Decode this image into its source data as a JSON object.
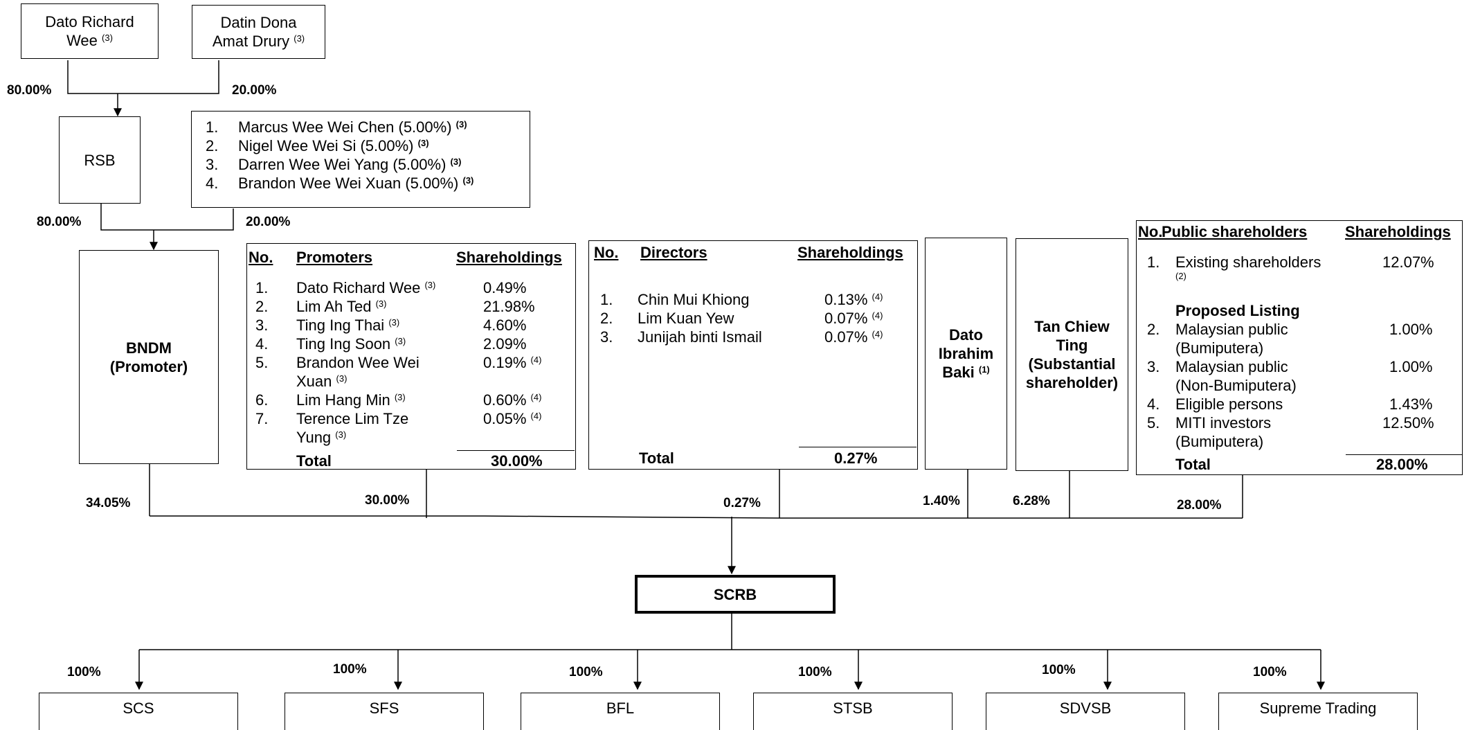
{
  "owners": {
    "richard": {
      "name": "Dato Richard Wee",
      "line1": "Dato Richard",
      "line2": "Wee",
      "sup": "(3)"
    },
    "dona": {
      "line1": "Datin Dona",
      "line2": "Amat Drury",
      "sup": "(3)"
    },
    "pct_left": "80.00%",
    "pct_right": "20.00%"
  },
  "rsb": {
    "name": "RSB",
    "pct_left": "80.00%",
    "pct_right": "20.00%"
  },
  "family": [
    {
      "no": "1.",
      "name": "Marcus Wee Wei Chen (5.00%)",
      "sup": "(3)"
    },
    {
      "no": "2.",
      "name": "Nigel Wee Wei Si (5.00%)",
      "sup": "(3)"
    },
    {
      "no": "3.",
      "name": "Darren Wee Wei Yang (5.00%)",
      "sup": "(3)"
    },
    {
      "no": "4.",
      "name": "Brandon Wee Wei Xuan (5.00%)",
      "sup": "(3)"
    }
  ],
  "bndm": {
    "line1": "BNDM",
    "line2": "(Promoter)",
    "pct": "34.05%"
  },
  "promoters": {
    "h_no": "No.",
    "h_name": "Promoters",
    "h_share": "Shareholdings",
    "rows": [
      {
        "no": "1.",
        "l1": "Dato Richard Wee",
        "l1sup": "(3)",
        "l2": "",
        "l2sup": "",
        "share": "0.49%",
        "ssup": ""
      },
      {
        "no": "2.",
        "l1": "Lim Ah Ted",
        "l1sup": "(3)",
        "l2": "",
        "l2sup": "",
        "share": "21.98%",
        "ssup": ""
      },
      {
        "no": "3.",
        "l1": "Ting Ing Thai",
        "l1sup": "(3)",
        "l2": "",
        "l2sup": "",
        "share": "4.60%",
        "ssup": ""
      },
      {
        "no": "4.",
        "l1": "Ting Ing Soon",
        "l1sup": "(3)",
        "l2": "",
        "l2sup": "",
        "share": "2.09%",
        "ssup": ""
      },
      {
        "no": "5.",
        "l1": "Brandon Wee Wei",
        "l1sup": "",
        "l2": "Xuan",
        "l2sup": "(3)",
        "share": "0.19%",
        "ssup": "(4)"
      },
      {
        "no": "6.",
        "l1": "Lim Hang Min",
        "l1sup": "(3)",
        "l2": "",
        "l2sup": "",
        "share": "0.60%",
        "ssup": "(4)"
      },
      {
        "no": "7.",
        "l1": "Terence Lim Tze",
        "l1sup": "",
        "l2": "Yung",
        "l2sup": "(3)",
        "share": "0.05%",
        "ssup": "(4)"
      }
    ],
    "total_label": "Total",
    "total_value": "30.00%",
    "pct": "30.00%"
  },
  "directors": {
    "h_no": "No.",
    "h_name": "Directors",
    "h_share": "Shareholdings",
    "rows": [
      {
        "no": "1.",
        "name": "Chin Mui Khiong",
        "share": "0.13%",
        "ssup": "(4)"
      },
      {
        "no": "2.",
        "name": "Lim Kuan Yew",
        "share": "0.07%",
        "ssup": "(4)"
      },
      {
        "no": "3.",
        "name": "Junijah binti Ismail",
        "share": "0.07%",
        "ssup": "(4)"
      }
    ],
    "total_label": "Total",
    "total_value": "0.27%",
    "pct": "0.27%"
  },
  "ibrahim": {
    "line1": "Dato",
    "line2": "Ibrahim",
    "line3": "Baki",
    "sup": "(1)",
    "pct": "1.40%"
  },
  "tan": {
    "line1": "Tan Chiew",
    "line2": "Ting",
    "line3": "(Substantial",
    "line4": "shareholder)",
    "pct": "6.28%"
  },
  "public": {
    "h_no": "No.",
    "h_name": "Public shareholders",
    "h_share": "Shareholdings",
    "r1_no": "1.",
    "r1_name": "Existing shareholders",
    "r1_sup": "(2)",
    "r1_share": "12.07%",
    "proposed": "Proposed Listing",
    "rows": [
      {
        "no": "2.",
        "l1": "Malaysian public",
        "l2": "(Bumiputera)",
        "share": "1.00%"
      },
      {
        "no": "3.",
        "l1": "Malaysian public",
        "l2": "(Non-Bumiputera)",
        "share": "1.00%"
      },
      {
        "no": "4.",
        "l1": "Eligible persons",
        "l2": "",
        "share": "1.43%"
      },
      {
        "no": "5.",
        "l1": "MITI investors",
        "l2": "(Bumiputera)",
        "share": "12.50%"
      }
    ],
    "total_label": "Total",
    "total_value": "28.00%",
    "pct": "28.00%"
  },
  "scrb": {
    "name": "SCRB"
  },
  "subsidiaries": [
    {
      "name": "SCS",
      "pct": "100%"
    },
    {
      "name": "SFS",
      "pct": "100%"
    },
    {
      "name": "BFL",
      "pct": "100%"
    },
    {
      "name": "STSB",
      "pct": "100%"
    },
    {
      "name": "SDVSB",
      "pct": "100%"
    },
    {
      "name": "Supreme Trading",
      "pct": "100%"
    }
  ]
}
